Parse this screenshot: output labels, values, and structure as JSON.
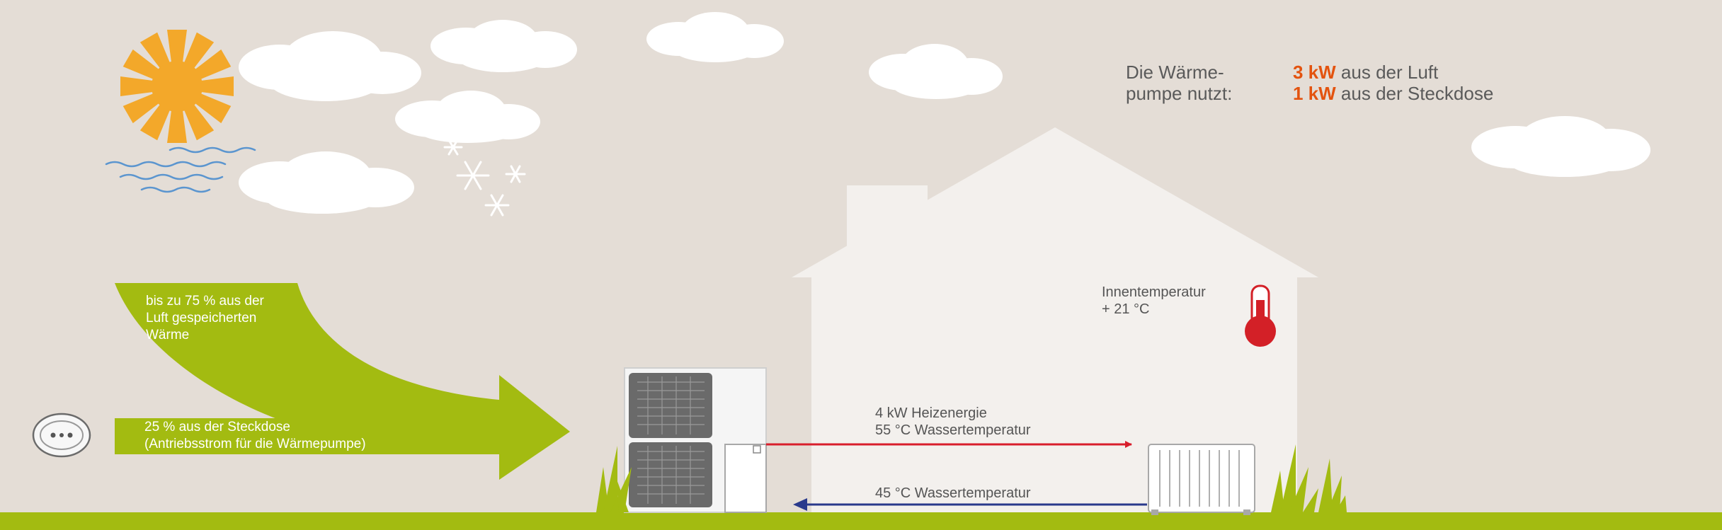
{
  "summary": {
    "label_line1": "Die Wärme-",
    "label_line2": "pumpe nutzt:",
    "rows": [
      {
        "value": "3 kW",
        "text": "aus der Luft"
      },
      {
        "value": "1 kW",
        "text": "aus der Steckdose"
      }
    ]
  },
  "air_share": {
    "line1": "bis zu 75 % aus der",
    "line2": "Luft gespeicherten",
    "line3": "Wärme"
  },
  "power_share": {
    "line1": "25 % aus der Steckdose",
    "line2": "(Antriebsstrom für die Wärmepumpe)"
  },
  "indoor": {
    "line1": "Innentemperatur",
    "line2": "+ 21 °C"
  },
  "supply": {
    "line1": "4 kW Heizenergie",
    "line2": "55 °C Wassertemperatur"
  },
  "return": {
    "line1": "45 °C Wassertemperatur"
  },
  "colors": {
    "background": "#e4ddd6",
    "house": "#f3f0ed",
    "green": "#a3bb11",
    "accent_orange": "#e3530f",
    "sun": "#f3a82a",
    "supply_pipe": "#d81e2c",
    "return_pipe": "#2a3a8c",
    "thermometer": "#d32027"
  }
}
